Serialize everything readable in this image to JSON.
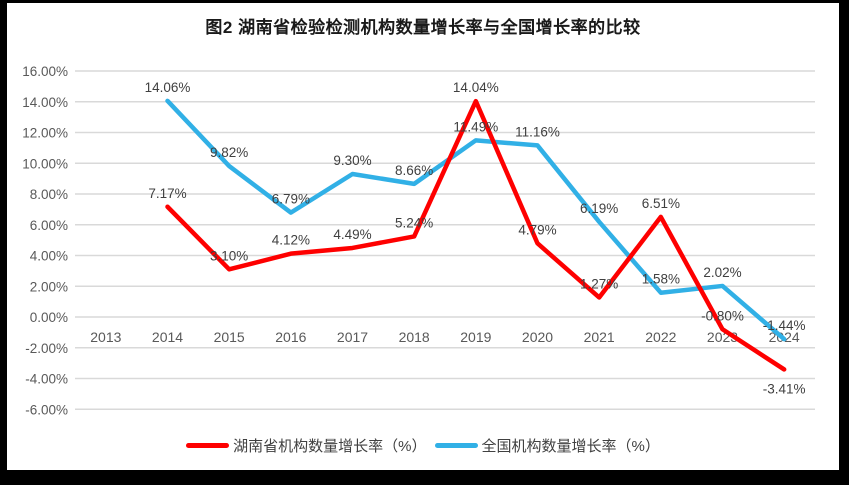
{
  "title": "图2 湖南省检验检测机构数量增长率与全国增长率的比较",
  "colors": {
    "hunan_line": "#FE0000",
    "national_line": "#31B0E6",
    "grid": "#D9D9D9",
    "axis_text": "#595959",
    "data_label_text": "#404040",
    "frame": "#000000",
    "background": "#FFFFFF"
  },
  "chart_data": {
    "type": "line",
    "title": "图2 湖南省检验检测机构数量增长率与全国增长率的比较",
    "categories": [
      "2013",
      "2014",
      "2015",
      "2016",
      "2017",
      "2018",
      "2019",
      "2020",
      "2021",
      "2022",
      "2023",
      "2024"
    ],
    "series": [
      {
        "name": "湖南省机构数量增长率（%）",
        "color": "#FE0000",
        "start_index": 1,
        "values": [
          7.17,
          3.1,
          4.12,
          4.49,
          5.24,
          14.04,
          4.79,
          1.27,
          6.51,
          -0.8,
          -3.41
        ],
        "labels": [
          "7.17%",
          "3.10%",
          "4.12%",
          "4.49%",
          "5.24%",
          "14.04%",
          "4.79%",
          "1.27%",
          "6.51%",
          "-0.80%",
          "-3.41%"
        ]
      },
      {
        "name": "全国机构数量增长率（%）",
        "color": "#31B0E6",
        "start_index": 1,
        "values": [
          14.06,
          9.82,
          6.79,
          9.3,
          8.66,
          11.49,
          11.16,
          6.19,
          1.58,
          2.02,
          -1.44
        ],
        "labels": [
          "14.06%",
          "9.82%",
          "6.79%",
          "9.30%",
          "8.66%",
          "11.49%",
          "11.16%",
          "6.19%",
          "1.58%",
          "2.02%",
          "-1.44%"
        ]
      }
    ],
    "xlabel": "",
    "ylabel": "",
    "ylim": [
      -6,
      16
    ],
    "y_tick_step": 2,
    "y_tick_labels": [
      "16.00%",
      "14.00%",
      "12.00%",
      "10.00%",
      "8.00%",
      "6.00%",
      "4.00%",
      "2.00%",
      "0.00%",
      "-2.00%",
      "-4.00%",
      "-6.00%"
    ],
    "grid": true,
    "legend_position": "bottom"
  }
}
